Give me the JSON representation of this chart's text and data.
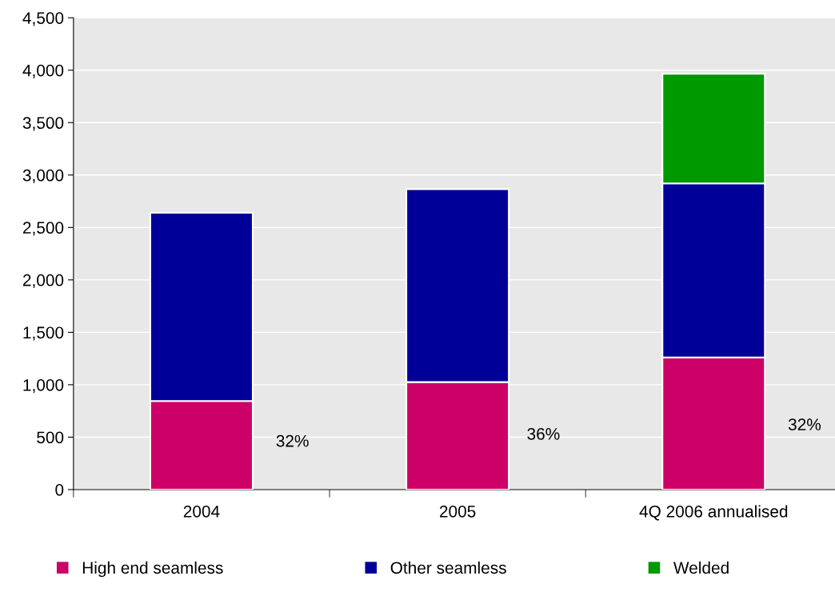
{
  "chart_data": {
    "type": "bar",
    "stacked": true,
    "categories": [
      "2004",
      "2005",
      "4Q 2006 annualised"
    ],
    "series": [
      {
        "name": "High end seamless",
        "color": "#cc0066",
        "values": [
          845,
          1025,
          1260
        ]
      },
      {
        "name": "Other seamless",
        "color": "#000099",
        "values": [
          1795,
          1840,
          1660
        ]
      },
      {
        "name": "Welded",
        "color": "#009900",
        "values": [
          null,
          null,
          1045
        ]
      }
    ],
    "ylim": [
      0,
      4500
    ],
    "yticks": [
      {
        "value": 0,
        "label": "0"
      },
      {
        "value": 500,
        "label": "500"
      },
      {
        "value": 1000,
        "label": "1,000"
      },
      {
        "value": 1500,
        "label": "1,500"
      },
      {
        "value": 2000,
        "label": "2,000"
      },
      {
        "value": 2500,
        "label": "2,500"
      },
      {
        "value": 3000,
        "label": "3,000"
      },
      {
        "value": 3500,
        "label": "3,500"
      },
      {
        "value": 4000,
        "label": "4,000"
      },
      {
        "value": 4500,
        "label": "4,500"
      }
    ],
    "grid": "y",
    "legend": "bottom",
    "annotations": [
      "32%",
      "36%",
      "32%"
    ]
  }
}
